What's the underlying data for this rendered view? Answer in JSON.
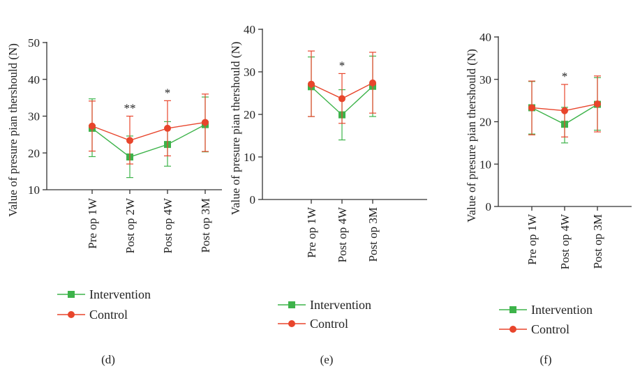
{
  "colors": {
    "intervention": "#3db34a",
    "control": "#e8452c",
    "axis": "#333333"
  },
  "chart_data": [
    {
      "type": "line",
      "panel_label": "(d)",
      "ylabel": "Value of presure pian thershould (N)",
      "categories": [
        "Pre op 1W",
        "Post op 2W",
        "Post op 4W",
        "Post op 3M"
      ],
      "ylim": [
        10,
        50
      ],
      "yticks": [
        10,
        20,
        30,
        40,
        50
      ],
      "significance": [
        "",
        "**",
        "*",
        ""
      ],
      "series": [
        {
          "name": "Intervention",
          "marker": "square",
          "color_key": "intervention",
          "values": [
            26.7,
            18.9,
            22.3,
            27.7
          ],
          "err_low": [
            19.0,
            13.3,
            16.4,
            20.3
          ],
          "err_high": [
            34.7,
            24.6,
            28.5,
            35.2
          ]
        },
        {
          "name": "Control",
          "marker": "circle",
          "color_key": "control",
          "values": [
            27.3,
            23.4,
            26.7,
            28.3
          ],
          "err_low": [
            20.5,
            17.0,
            19.2,
            20.4
          ],
          "err_high": [
            34.1,
            30.0,
            34.2,
            36.0
          ]
        }
      ],
      "legend": [
        "Intervention",
        "Control"
      ]
    },
    {
      "type": "line",
      "panel_label": "(e)",
      "ylabel": "Value of presure pian thershould (N)",
      "categories": [
        "Pre op 1W",
        "Post op 4W",
        "Post op 3M"
      ],
      "ylim": [
        0,
        40
      ],
      "yticks": [
        0,
        10,
        20,
        30,
        40
      ],
      "significance": [
        "",
        "*",
        ""
      ],
      "series": [
        {
          "name": "Intervention",
          "marker": "square",
          "color_key": "intervention",
          "values": [
            26.5,
            19.9,
            26.6
          ],
          "err_low": [
            19.5,
            14.0,
            19.5
          ],
          "err_high": [
            33.5,
            25.8,
            33.7
          ]
        },
        {
          "name": "Control",
          "marker": "circle",
          "color_key": "control",
          "values": [
            27.1,
            23.7,
            27.4
          ],
          "err_low": [
            19.5,
            17.9,
            20.3
          ],
          "err_high": [
            34.9,
            29.6,
            34.6
          ]
        }
      ],
      "legend": [
        "Intervention",
        "Control"
      ]
    },
    {
      "type": "line",
      "panel_label": "(f)",
      "ylabel": "Value of presure pian thershould (N)",
      "categories": [
        "Pre op 1W",
        "Post op 4W",
        "Post op 3M"
      ],
      "ylim": [
        0,
        40
      ],
      "yticks": [
        0,
        10,
        20,
        30,
        40
      ],
      "significance": [
        "",
        "*",
        ""
      ],
      "series": [
        {
          "name": "Intervention",
          "marker": "square",
          "color_key": "intervention",
          "values": [
            23.3,
            19.4,
            24.1
          ],
          "err_low": [
            17.1,
            15.0,
            18.0
          ],
          "err_high": [
            29.5,
            23.4,
            30.4
          ]
        },
        {
          "name": "Control",
          "marker": "circle",
          "color_key": "control",
          "values": [
            23.3,
            22.6,
            24.2
          ],
          "err_low": [
            16.9,
            16.4,
            17.6
          ],
          "err_high": [
            29.6,
            28.8,
            30.8
          ]
        }
      ],
      "legend": [
        "Intervention",
        "Control"
      ]
    }
  ]
}
